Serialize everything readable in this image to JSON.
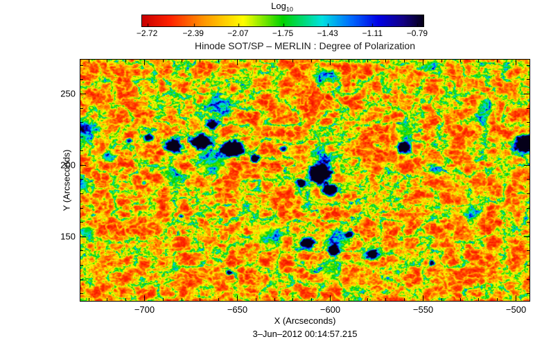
{
  "chart_data": {
    "type": "heatmap",
    "title": "Hinode SOT/SP – MERLIN : Degree of Polarization",
    "xlabel": "X (Arcseconds)",
    "ylabel": "Y (Arcseconds)",
    "footer_timestamp": "3–Jun–2012 00:14:57.215",
    "x_range": [
      -734.5,
      -492.0
    ],
    "y_range": [
      104.0,
      274.0
    ],
    "x_ticks": {
      "values": [
        -700,
        -650,
        -600,
        -550,
        -500
      ],
      "labels": [
        "−700",
        "−650",
        "−600",
        "−550",
        "−500"
      ],
      "minor_step": 10
    },
    "y_ticks": {
      "values": [
        150,
        200,
        250
      ],
      "labels": [
        "150",
        "200",
        "250"
      ],
      "minor_step": 10
    },
    "colorbar": {
      "title": "Log",
      "title_sub": "10",
      "scale": "log10 degree of polarization",
      "range": [
        -2.76,
        -0.75
      ],
      "tick_values": [
        -2.72,
        -2.39,
        -2.07,
        -1.75,
        -1.43,
        -1.11,
        -0.79
      ],
      "tick_labels": [
        "−2.72",
        "−2.39",
        "−2.07",
        "−1.75",
        "−1.43",
        "−1.11",
        "−0.79"
      ]
    },
    "colormap_stops": [
      {
        "p": 0.0,
        "rgb": [
          200,
          0,
          0
        ]
      },
      {
        "p": 0.1,
        "rgb": [
          255,
          34,
          0
        ]
      },
      {
        "p": 0.22,
        "rgb": [
          255,
          150,
          0
        ]
      },
      {
        "p": 0.36,
        "rgb": [
          255,
          255,
          0
        ]
      },
      {
        "p": 0.5,
        "rgb": [
          0,
          210,
          0
        ]
      },
      {
        "p": 0.64,
        "rgb": [
          0,
          225,
          225
        ]
      },
      {
        "p": 0.74,
        "rgb": [
          0,
          110,
          255
        ]
      },
      {
        "p": 0.84,
        "rgb": [
          0,
          0,
          230
        ]
      },
      {
        "p": 0.93,
        "rgb": [
          18,
          0,
          130
        ]
      },
      {
        "p": 1.0,
        "rgb": [
          5,
          0,
          25
        ]
      }
    ],
    "background_level_log10": -2.65,
    "features_format": [
      "x_arcsec",
      "y_arcsec",
      "radius_arcsec",
      "strength_0_to_1"
    ],
    "features": [
      [
        -684,
        213,
        5.5,
        1.2
      ],
      [
        -669,
        216,
        6.5,
        1.25
      ],
      [
        -652,
        211,
        7.5,
        1.3
      ],
      [
        -640,
        204,
        3.5,
        0.9
      ],
      [
        -663,
        228,
        4.0,
        0.95
      ],
      [
        -697,
        219,
        3.2,
        0.85
      ],
      [
        -708,
        217,
        2.2,
        0.7
      ],
      [
        -605,
        194,
        8.5,
        1.3
      ],
      [
        -600,
        182,
        5.5,
        1.1
      ],
      [
        -615,
        187,
        3.5,
        0.85
      ],
      [
        -560,
        212,
        5.0,
        1.15
      ],
      [
        -494,
        214,
        7.5,
        1.3
      ],
      [
        -612,
        145,
        5.5,
        1.2
      ],
      [
        -598,
        140,
        4.0,
        1.05
      ],
      [
        -577,
        137,
        4.2,
        1.1
      ],
      [
        -589,
        151,
        2.6,
        0.8
      ],
      [
        -545,
        131,
        2.2,
        0.7
      ],
      [
        -625,
        211,
        2.6,
        0.8
      ],
      [
        -680,
        164,
        1.8,
        0.65
      ],
      [
        -654,
        124,
        2.0,
        0.7
      ],
      [
        -700,
        187,
        1.8,
        0.6
      ],
      [
        -733,
        224,
        9.0,
        0.5
      ],
      [
        -734,
        186,
        7.0,
        0.45
      ],
      [
        -731,
        153,
        6.0,
        0.45
      ],
      [
        -719,
        206,
        5.0,
        0.4
      ],
      [
        -660,
        242,
        9.0,
        0.42
      ],
      [
        -684,
        193,
        7.0,
        0.35
      ],
      [
        -632,
        150,
        10.0,
        0.33
      ],
      [
        -600,
        126,
        8.0,
        0.3
      ],
      [
        -560,
        224,
        7.0,
        0.33
      ],
      [
        -543,
        196,
        5.0,
        0.3
      ],
      [
        -518,
        232,
        6.0,
        0.3
      ],
      [
        -663,
        201,
        10.0,
        0.35
      ],
      [
        -604,
        204,
        9.0,
        0.3
      ],
      [
        -596,
        146,
        9.0,
        0.3
      ],
      [
        -602,
        262,
        8.0,
        0.33
      ],
      [
        -546,
        269,
        6.0,
        0.3
      ],
      [
        -524,
        167,
        6.0,
        0.28
      ],
      [
        -516,
        241,
        6.0,
        0.3
      ]
    ],
    "streaks_x": [
      -563,
      -516
    ],
    "noise_seed": 7
  }
}
